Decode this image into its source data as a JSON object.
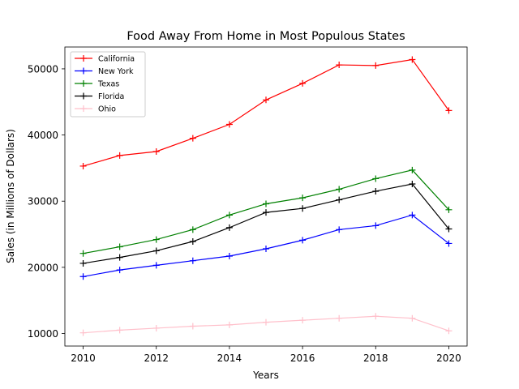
{
  "chart_data": {
    "type": "line",
    "title": "Food Away From Home in Most Populous States",
    "xlabel": "Years",
    "ylabel": "Sales (in Millions of Dollars)",
    "x": [
      2010,
      2011,
      2012,
      2013,
      2014,
      2015,
      2016,
      2017,
      2018,
      2019,
      2020
    ],
    "xlim": [
      2009.5,
      2020.5
    ],
    "ylim": [
      8100,
      53300
    ],
    "xticks": [
      2010,
      2012,
      2014,
      2016,
      2018,
      2020
    ],
    "yticks": [
      10000,
      20000,
      30000,
      40000,
      50000
    ],
    "grid": false,
    "legend_position": "upper-left",
    "marker": "plus",
    "series": [
      {
        "name": "California",
        "color": "#ff0000",
        "values": [
          35300,
          36900,
          37500,
          39500,
          41600,
          45300,
          47800,
          50600,
          50500,
          51400,
          43700
        ]
      },
      {
        "name": "New York",
        "color": "#0000ff",
        "values": [
          18600,
          19600,
          20300,
          21000,
          21700,
          22800,
          24100,
          25700,
          26300,
          27900,
          23600
        ]
      },
      {
        "name": "Texas",
        "color": "#008000",
        "values": [
          22100,
          23100,
          24200,
          25700,
          27900,
          29600,
          30500,
          31800,
          33400,
          34700,
          28700
        ]
      },
      {
        "name": "Florida",
        "color": "#000000",
        "values": [
          20600,
          21500,
          22500,
          23900,
          26000,
          28300,
          28900,
          30200,
          31500,
          32600,
          25800
        ]
      },
      {
        "name": "Ohio",
        "color": "#ffc0cb",
        "values": [
          10100,
          10500,
          10800,
          11100,
          11300,
          11700,
          12000,
          12300,
          12600,
          12300,
          10400
        ]
      }
    ]
  }
}
